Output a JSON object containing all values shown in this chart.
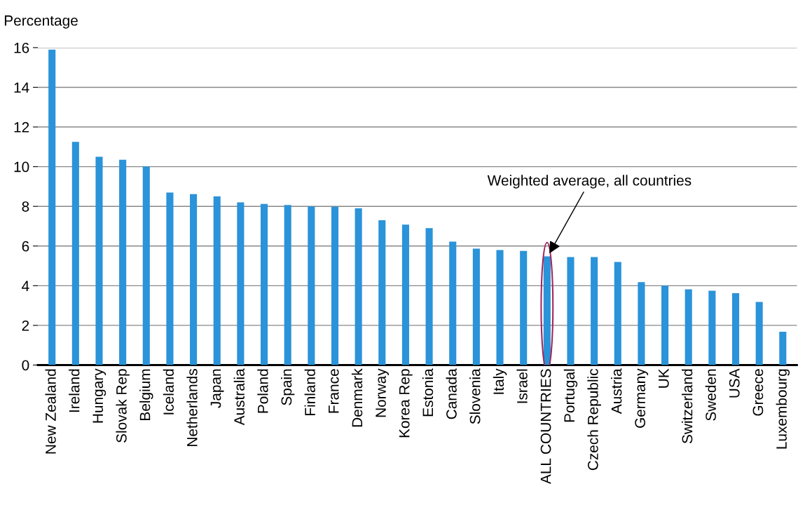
{
  "chart_data": {
    "type": "bar",
    "ylabel": "Percentage",
    "categories": [
      "New Zealand",
      "Ireland",
      "Hungary",
      "Slovak Rep",
      "Belgium",
      "Iceland",
      "Netherlands",
      "Japan",
      "Australia",
      "Poland",
      "Spain",
      "Finland",
      "France",
      "Denmark",
      "Norway",
      "Korea Rep",
      "Estonia",
      "Canada",
      "Slovenia",
      "Italy",
      "Israel",
      "ALL COUNTRIES",
      "Portugal",
      "Czech Republic",
      "Austria",
      "Germany",
      "UK",
      "Switzerland",
      "Sweden",
      "USA",
      "Greece",
      "Luxembourg"
    ],
    "values": [
      15.9,
      11.25,
      10.5,
      10.35,
      10.0,
      8.7,
      8.62,
      8.5,
      8.2,
      8.12,
      8.07,
      8.0,
      7.98,
      7.9,
      7.3,
      7.08,
      6.9,
      6.22,
      5.87,
      5.8,
      5.75,
      5.48,
      5.44,
      5.44,
      5.2,
      4.18,
      4.0,
      3.82,
      3.75,
      3.62,
      3.18,
      1.68
    ],
    "color": "#2a93d9",
    "ylim": [
      0,
      16
    ],
    "yticks": [
      0,
      2,
      4,
      6,
      8,
      10,
      12,
      14,
      16
    ],
    "grid": "y",
    "annotations": [
      {
        "text": "Weighted average, all countries",
        "x": "ALL COUNTRIES",
        "y": 5.48
      }
    ]
  }
}
